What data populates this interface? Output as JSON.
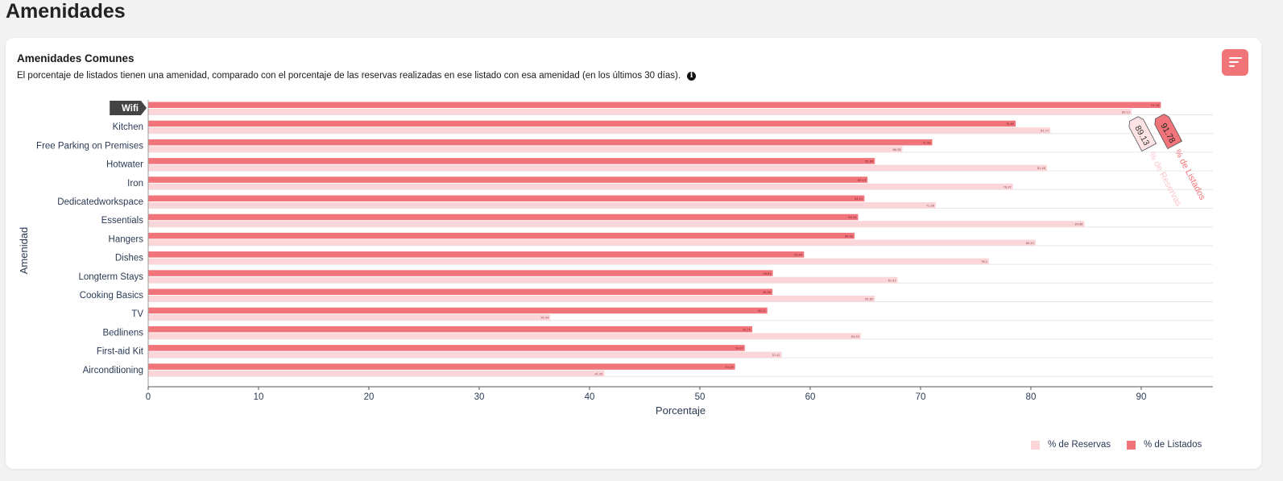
{
  "page": {
    "title": "Amenidades"
  },
  "card": {
    "title": "Amenidades Comunes",
    "description": "El porcentaje de listados tienen una amenidad, comparado con el porcentaje de las reservas realizadas en ese listado con esa amenidad (en los últimos 30 días).",
    "info_icon": "info-icon",
    "sort_icon": "sort-icon"
  },
  "colors": {
    "listados": "#f0747a",
    "reservas": "#fbd5d7",
    "accent": "#f07478"
  },
  "chart_data": {
    "type": "bar",
    "orientation": "horizontal",
    "categories": [
      "Wifi",
      "Kitchen",
      "Free Parking on Premises",
      "Hotwater",
      "Iron",
      "Dedicatedworkspace",
      "Essentials",
      "Hangers",
      "Dishes",
      "Longterm Stays",
      "Cooking Basics",
      "TV",
      "Bedlinens",
      "First-aid Kit",
      "Airconditioning"
    ],
    "series": [
      {
        "name": "% de Listados",
        "values": [
          91.78,
          78.62,
          71.06,
          65.86,
          65.19,
          64.91,
          64.34,
          64.02,
          59.44,
          56.61,
          56.58,
          56.11,
          54.75,
          54.07,
          53.19
        ]
      },
      {
        "name": "% de Reservas",
        "values": [
          89.13,
          81.77,
          68.36,
          81.46,
          78.37,
          71.38,
          84.86,
          80.43,
          76.2,
          67.93,
          65.85,
          36.44,
          64.59,
          57.42,
          41.35
        ]
      }
    ],
    "xlabel": "Porcentaje",
    "ylabel": "Amenidad",
    "xlim": [
      0,
      96.5
    ],
    "xticks": [
      0,
      10,
      20,
      30,
      40,
      50,
      60,
      70,
      80,
      90
    ],
    "grid": true,
    "legend": "bottom-right",
    "highlighted_category": "Wifi",
    "annotations": [
      {
        "series": "% de Reservas",
        "value": "89.13",
        "text": "% de Reservas"
      },
      {
        "series": "% de Listados",
        "value": "91.78",
        "text": "% de Listados"
      }
    ]
  }
}
